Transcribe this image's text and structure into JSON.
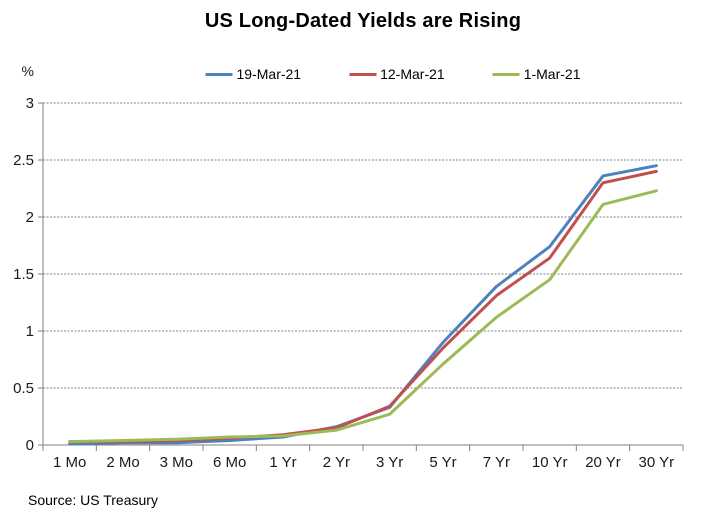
{
  "source": "Source: US Treasury",
  "colors": {
    "axis": "#808080",
    "gridline": "#808080",
    "tick_text": "#1a1a1a",
    "title_text": "#000000",
    "background": "#ffffff"
  },
  "chart_data": {
    "type": "line",
    "title": "US Long-Dated Yields are Rising",
    "ylabel": "%",
    "xlabel": "",
    "ylim": [
      0,
      3
    ],
    "y_tick_step": 0.5,
    "y_ticks": [
      "0",
      "0.5",
      "1",
      "1.5",
      "2",
      "2.5",
      "3"
    ],
    "grid": true,
    "legend_position": "top",
    "categories": [
      "1 Mo",
      "2 Mo",
      "3 Mo",
      "6 Mo",
      "1 Yr",
      "2 Yr",
      "3 Yr",
      "5 Yr",
      "7 Yr",
      "10 Yr",
      "20 Yr",
      "30 Yr"
    ],
    "series": [
      {
        "name": "19-Mar-21",
        "color": "#4F81BD",
        "values": [
          0.01,
          0.02,
          0.02,
          0.04,
          0.07,
          0.16,
          0.33,
          0.9,
          1.39,
          1.74,
          2.36,
          2.45
        ]
      },
      {
        "name": "12-Mar-21",
        "color": "#C0504D",
        "values": [
          0.03,
          0.03,
          0.04,
          0.06,
          0.09,
          0.15,
          0.34,
          0.85,
          1.31,
          1.64,
          2.3,
          2.4
        ]
      },
      {
        "name": "1-Mar-21",
        "color": "#9BBB59",
        "values": [
          0.03,
          0.04,
          0.05,
          0.07,
          0.08,
          0.13,
          0.27,
          0.71,
          1.12,
          1.45,
          2.11,
          2.23
        ]
      }
    ]
  }
}
